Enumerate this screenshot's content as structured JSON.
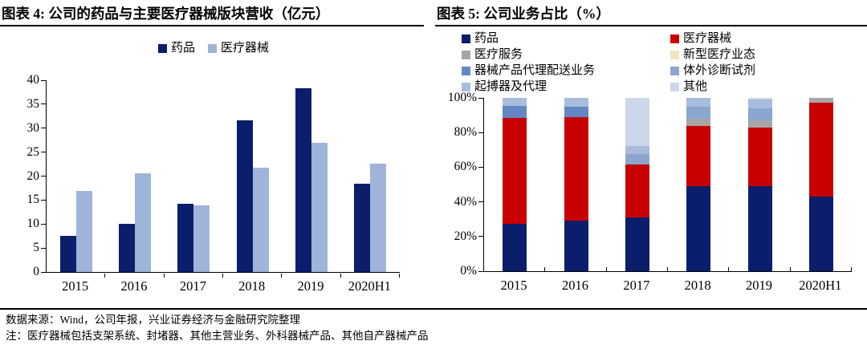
{
  "figure4": {
    "title": "图表 4: 公司的药品与主要医疗器械版块营收（亿元）"
  },
  "figure5": {
    "title": "图表 5: 公司业务占比（%）"
  },
  "footer": {
    "source": "数据来源：Wind，公司年报，兴业证券经济与金融研究院整理",
    "note": "注：医疗器械包括支架系统、封堵器、其他主营业务、外科器械产品、其他自产器械产品"
  },
  "chart_data": [
    {
      "type": "bar",
      "stacked": false,
      "title": "图表 4: 公司的药品与主要医疗器械版块营收（亿元）",
      "categories": [
        "2015",
        "2016",
        "2017",
        "2018",
        "2019",
        "2020H1"
      ],
      "series": [
        {
          "id": "pharma",
          "name": "药品",
          "color": "#0B1E6B",
          "values": [
            7.6,
            10.1,
            14.2,
            31.6,
            38.4,
            18.4
          ]
        },
        {
          "id": "medical-devices",
          "name": "医疗器械",
          "color": "#9FB4D8",
          "values": [
            16.9,
            20.6,
            13.9,
            21.7,
            26.9,
            22.6
          ]
        }
      ],
      "xlabel": "",
      "ylabel": "",
      "ylim": [
        0,
        40
      ],
      "ytick_step": 5,
      "ytick_suffix": "",
      "grid": false,
      "legend_position": "top-center"
    },
    {
      "type": "bar",
      "stacked": true,
      "title": "图表 5: 公司业务占比（%）",
      "categories": [
        "2015",
        "2016",
        "2017",
        "2018",
        "2019",
        "2020H1"
      ],
      "series": [
        {
          "id": "pharma",
          "name": "药品",
          "color": "#0B1E6B",
          "values": [
            27.5,
            29,
            31,
            49,
            49,
            43
          ]
        },
        {
          "id": "medical-devices",
          "name": "医疗器械",
          "color": "#C80000",
          "values": [
            61,
            60,
            30.5,
            35,
            34,
            54
          ]
        },
        {
          "id": "medical-services",
          "name": "医疗服务",
          "color": "#A6A6A6",
          "values": [
            0,
            0,
            0,
            4,
            4,
            3
          ]
        },
        {
          "id": "new-healthcare-business",
          "name": "新型医疗业态",
          "color": "#F2E4C3",
          "values": [
            0,
            0,
            0,
            0,
            0,
            0
          ]
        },
        {
          "id": "device-agency-distribution",
          "name": "器械产品代理配送业务",
          "color": "#6287C4",
          "values": [
            7,
            6,
            0,
            0,
            0,
            0
          ]
        },
        {
          "id": "ivd-reagents",
          "name": "体外诊断试剂",
          "color": "#8AA5D0",
          "values": [
            0,
            0,
            6,
            7,
            7,
            0
          ]
        },
        {
          "id": "pacemaker-and-agency",
          "name": "起搏器及代理",
          "color": "#A9BCDC",
          "values": [
            4.5,
            5,
            4.5,
            5,
            5,
            0
          ]
        },
        {
          "id": "others",
          "name": "其他",
          "color": "#CCD7EA",
          "values": [
            0,
            0,
            28,
            0,
            1,
            0
          ]
        }
      ],
      "xlabel": "",
      "ylabel": "",
      "ylim": [
        0,
        100
      ],
      "ytick_step": 20,
      "ytick_suffix": "%",
      "grid": false,
      "legend_position": "top-two-columns"
    }
  ]
}
